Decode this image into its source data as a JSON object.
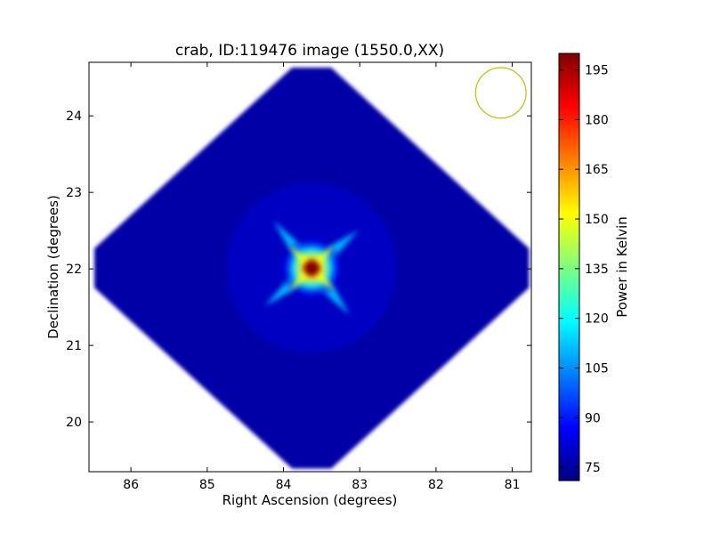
{
  "chart_data": {
    "type": "heatmap",
    "title": "crab, ID:119476 image (1550.0,XX)",
    "xlabel": "Right Ascension (degrees)",
    "ylabel": "Declination (degrees)",
    "x_inverted": true,
    "xlim": [
      86.55,
      80.75
    ],
    "ylim": [
      19.35,
      24.7
    ],
    "x_ticks": [
      86,
      85,
      84,
      83,
      82,
      81
    ],
    "y_ticks": [
      20,
      21,
      22,
      23,
      24
    ],
    "colormap": "jet",
    "grid": false,
    "image": {
      "shape": "diamond",
      "center": [
        83.63,
        22.01
      ],
      "half_extent_ra": 2.85,
      "half_extent_dec": 2.62,
      "background_level": 76,
      "peak_level": 199
    },
    "source": {
      "ra": 83.63,
      "dec": 22.01,
      "peak": 199
    },
    "beam_circle": {
      "ra": 81.15,
      "dec": 24.3,
      "radius_deg": 0.33,
      "color": "#bfbf00"
    },
    "colorbar": {
      "label": "Power in Kelvin",
      "vmin": 71,
      "vmax": 200,
      "ticks": [
        75,
        90,
        105,
        120,
        135,
        150,
        165,
        180,
        195
      ]
    }
  }
}
